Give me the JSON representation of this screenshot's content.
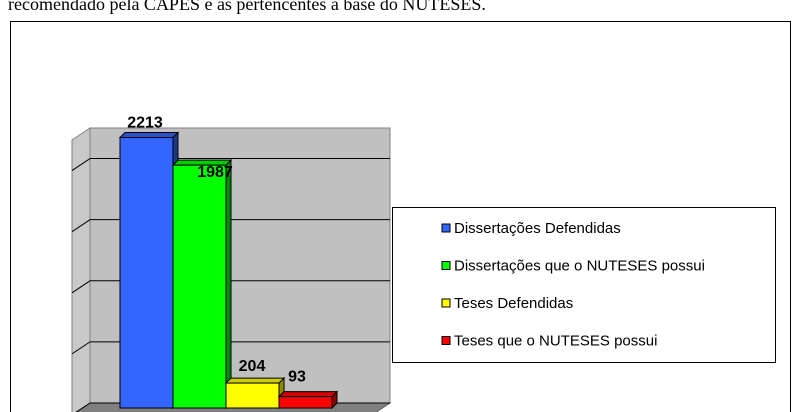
{
  "caption": "recomendado pela CAPES e as pertencentes à base do NUTESES.",
  "chart_data": {
    "type": "bar3d",
    "categories": [
      "Dissertações Defendidas",
      "Dissertações que o NUTESES possui",
      "Teses Defendidas",
      "Teses que o NUTESES possui"
    ],
    "values": [
      2213,
      1987,
      204,
      93
    ],
    "colors": [
      "#3366ff",
      "#00ff00",
      "#ffff00",
      "#ff0000"
    ],
    "ylim": [
      0,
      2250
    ],
    "yticks": [
      0,
      500,
      1000,
      1500,
      2000
    ],
    "grid": true,
    "legend": "right"
  }
}
